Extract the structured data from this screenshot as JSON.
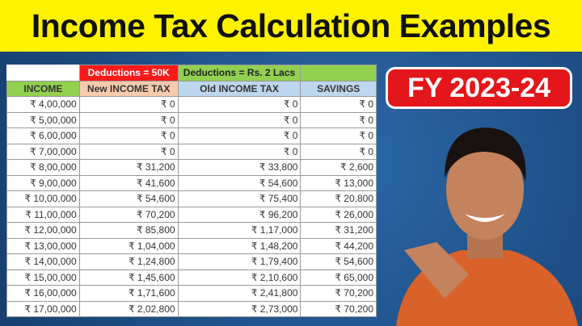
{
  "title": "Income Tax Calculation Examples",
  "badge": "FY 2023-24",
  "table": {
    "deductions_new": "Deductions = 50K",
    "deductions_old": "Deductions = Rs. 2 Lacs",
    "headers": [
      "INCOME",
      "New INCOME TAX",
      "Old INCOME TAX",
      "SAVINGS"
    ],
    "rows": [
      [
        "₹ 4,00,000",
        "₹ 0",
        "₹ 0",
        "₹ 0"
      ],
      [
        "₹ 5,00,000",
        "₹ 0",
        "₹ 0",
        "₹ 0"
      ],
      [
        "₹ 6,00,000",
        "₹ 0",
        "₹ 0",
        "₹ 0"
      ],
      [
        "₹ 7,00,000",
        "₹ 0",
        "₹ 0",
        "₹ 0"
      ],
      [
        "₹ 8,00,000",
        "₹ 31,200",
        "₹ 33,800",
        "₹ 2,600"
      ],
      [
        "₹ 9,00,000",
        "₹ 41,600",
        "₹ 54,600",
        "₹ 13,000"
      ],
      [
        "₹ 10,00,000",
        "₹ 54,600",
        "₹ 75,400",
        "₹ 20,800"
      ],
      [
        "₹ 11,00,000",
        "₹ 70,200",
        "₹ 96,200",
        "₹ 26,000"
      ],
      [
        "₹ 12,00,000",
        "₹ 85,800",
        "₹ 1,17,000",
        "₹ 31,200"
      ],
      [
        "₹ 13,00,000",
        "₹ 1,04,000",
        "₹ 1,48,200",
        "₹ 44,200"
      ],
      [
        "₹ 14,00,000",
        "₹ 1,24,800",
        "₹ 1,79,400",
        "₹ 54,600"
      ],
      [
        "₹ 15,00,000",
        "₹ 1,45,600",
        "₹ 2,10,600",
        "₹ 65,000"
      ],
      [
        "₹ 16,00,000",
        "₹ 1,71,600",
        "₹ 2,41,800",
        "₹ 70,200"
      ],
      [
        "₹ 17,00,000",
        "₹ 2,02,800",
        "₹ 2,73,000",
        "₹ 70,200"
      ]
    ]
  },
  "colors": {
    "title_bg": "#fff200",
    "badge_bg": "#e3161b",
    "red_header": "#ff1a1a",
    "green_header": "#92d050",
    "peach_header": "#f8cbad",
    "blue_header": "#bdd7ee"
  }
}
